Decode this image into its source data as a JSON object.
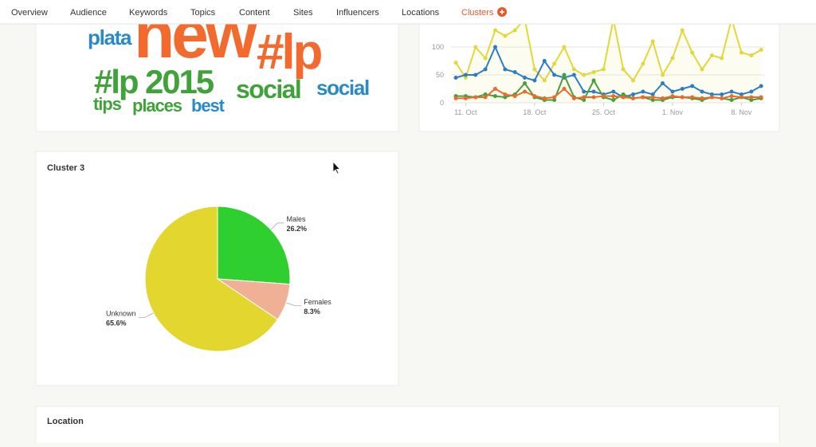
{
  "nav": {
    "tabs": [
      "Overview",
      "Audience",
      "Keywords",
      "Topics",
      "Content",
      "Sites",
      "Influencers",
      "Locations",
      "Clusters"
    ],
    "active": 8
  },
  "wordcloud": {
    "words": [
      {
        "text": "new",
        "color": "#f26a2e"
      },
      {
        "text": "plata",
        "color": "#2a8ac8"
      },
      {
        "text": "#lp",
        "color": "#f26a2e"
      },
      {
        "text": "2015",
        "color": "#3fa33a"
      },
      {
        "text": "#lp 2015",
        "color": "#3fa33a"
      },
      {
        "text": "social",
        "color": "#3fa33a"
      },
      {
        "text": "social",
        "color": "#2a8ac8"
      },
      {
        "text": "tips",
        "color": "#3fa33a"
      },
      {
        "text": "places",
        "color": "#3fa33a"
      },
      {
        "text": "best",
        "color": "#2a8ac8"
      }
    ]
  },
  "line_chart": {
    "type": "line",
    "categories": [
      null,
      "11. Oct",
      null,
      null,
      null,
      null,
      null,
      null,
      "18. Oct",
      null,
      null,
      null,
      null,
      null,
      null,
      "25. Oct",
      null,
      null,
      null,
      null,
      null,
      null,
      "1. Nov",
      null,
      null,
      null,
      null,
      null,
      null,
      "8. Nov",
      null,
      null
    ],
    "ylim": [
      0,
      140
    ],
    "yticks": [
      0,
      50,
      100
    ],
    "grid": true,
    "series": [
      {
        "color": "#e3d73a",
        "values": [
          72,
          45,
          100,
          80,
          130,
          120,
          130,
          150,
          60,
          40,
          70,
          100,
          60,
          50,
          55,
          60,
          150,
          60,
          40,
          70,
          110,
          50,
          80,
          130,
          90,
          60,
          85,
          80,
          150,
          90,
          85,
          95
        ]
      },
      {
        "color": "#2a7fc0",
        "values": [
          45,
          50,
          50,
          60,
          100,
          60,
          55,
          45,
          40,
          75,
          50,
          45,
          50,
          20,
          20,
          15,
          20,
          10,
          15,
          20,
          15,
          35,
          20,
          25,
          30,
          20,
          15,
          15,
          20,
          15,
          20,
          30
        ]
      },
      {
        "color": "#45a03a",
        "values": [
          12,
          12,
          10,
          15,
          12,
          10,
          15,
          35,
          10,
          5,
          5,
          50,
          10,
          5,
          40,
          10,
          5,
          15,
          8,
          10,
          5,
          5,
          10,
          10,
          8,
          5,
          10,
          8,
          5,
          10,
          5,
          8
        ]
      },
      {
        "color": "#ee6a2c",
        "values": [
          8,
          8,
          10,
          10,
          25,
          15,
          12,
          20,
          12,
          8,
          10,
          25,
          8,
          10,
          10,
          12,
          12,
          10,
          8,
          10,
          10,
          8,
          12,
          10,
          10,
          8,
          10,
          8,
          12,
          10,
          10,
          10
        ]
      }
    ]
  },
  "cluster": {
    "title": "Cluster 3"
  },
  "pie_chart": {
    "type": "pie",
    "categories": [
      "Males",
      "Females",
      "Unknown"
    ],
    "values": [
      26.2,
      8.3,
      65.6
    ],
    "value_labels": [
      "26.2%",
      "8.3%",
      "65.6%"
    ],
    "colors": [
      "#2ecf2e",
      "#f0b096",
      "#e3d62e"
    ]
  },
  "location": {
    "title": "Location"
  }
}
